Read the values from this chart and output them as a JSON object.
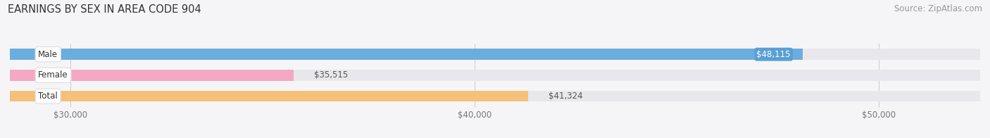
{
  "title": "EARNINGS BY SEX IN AREA CODE 904",
  "source": "Source: ZipAtlas.com",
  "categories": [
    "Male",
    "Female",
    "Total"
  ],
  "values": [
    48115,
    35515,
    41324
  ],
  "bar_colors": [
    "#6aaee0",
    "#f5a8c3",
    "#f5c07a"
  ],
  "bar_bg_color": "#e8e8ec",
  "value_labels": [
    "$48,115",
    "$35,515",
    "$41,324"
  ],
  "male_label_bg": "#5a9fd4",
  "xmin": 28500,
  "xmax": 52500,
  "xticks": [
    30000,
    40000,
    50000
  ],
  "xtick_labels": [
    "$30,000",
    "$40,000",
    "$50,000"
  ],
  "title_fontsize": 10.5,
  "source_fontsize": 8.5,
  "label_fontsize": 8.5,
  "value_fontsize": 8.5,
  "background_color": "#f5f5f8",
  "bar_height": 0.52
}
